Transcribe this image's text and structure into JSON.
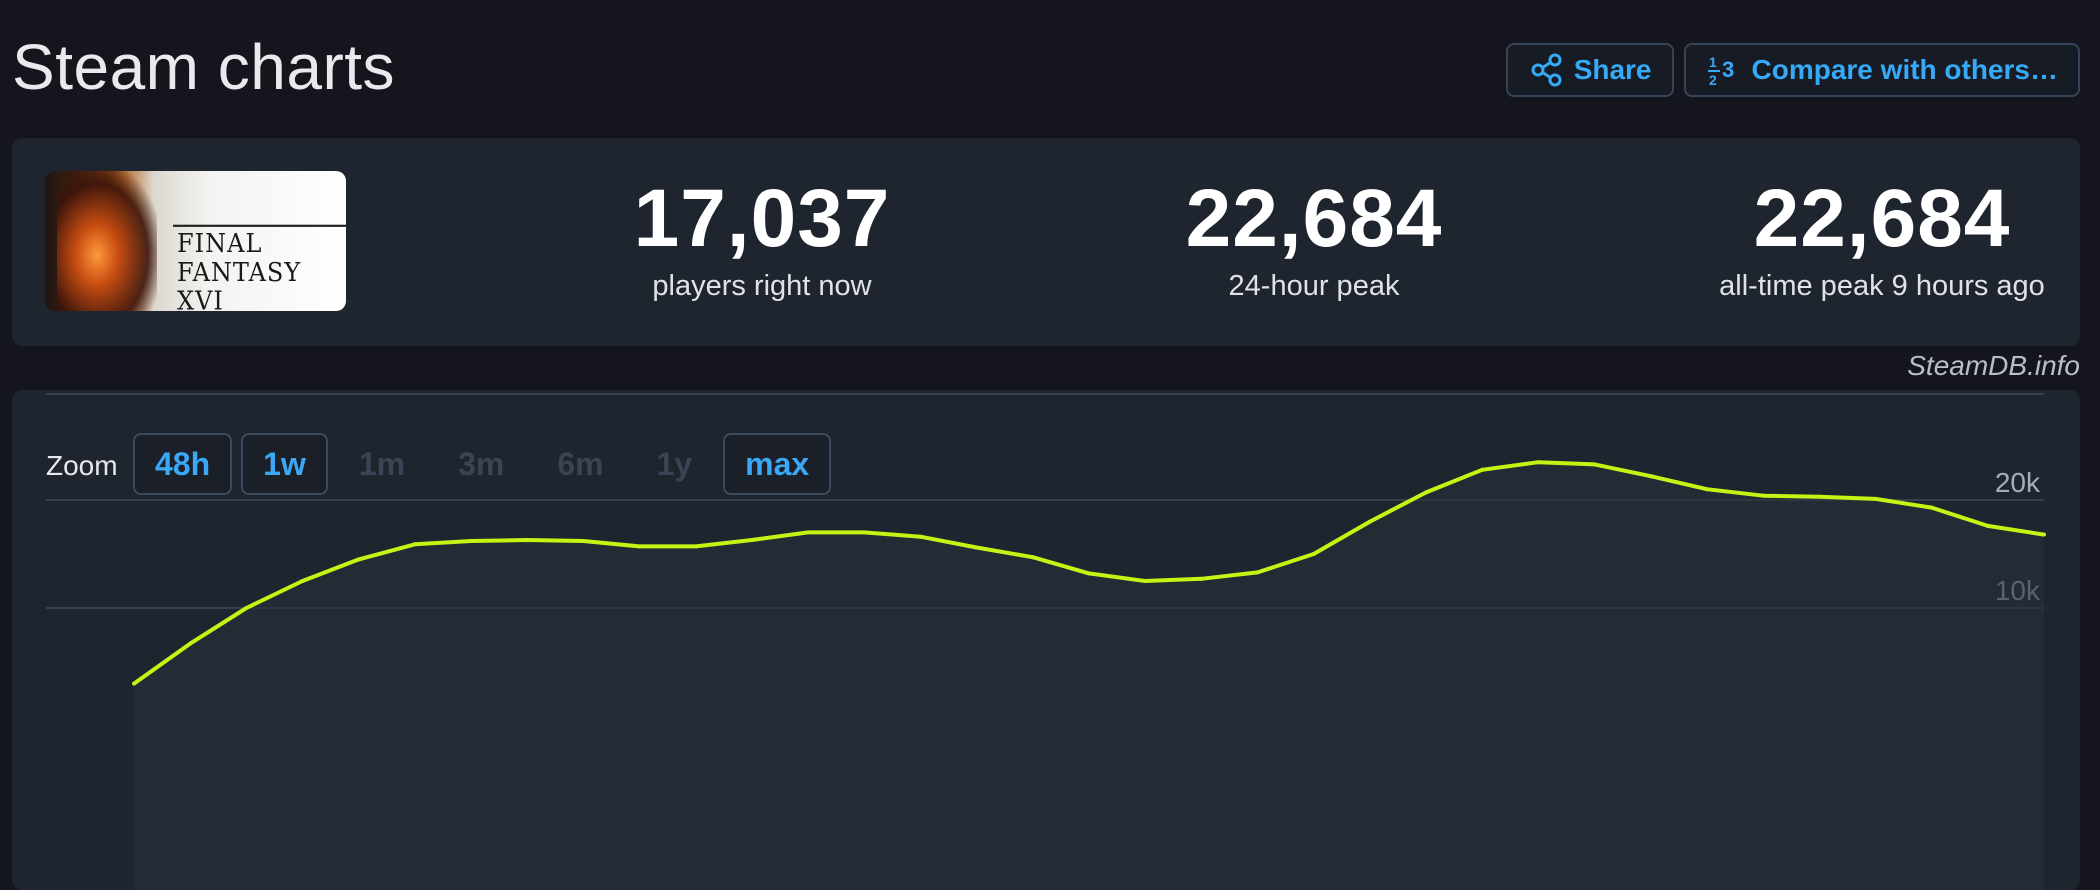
{
  "page": {
    "title": "Steam charts"
  },
  "header": {
    "share_label": "Share",
    "compare_label": "Compare with others…"
  },
  "game": {
    "logo_text": "FINAL FANTASY XVI"
  },
  "stats": [
    {
      "value": "17,037",
      "label": "players right now"
    },
    {
      "value": "22,684",
      "label": "24-hour peak"
    },
    {
      "value": "22,684",
      "label": "all-time peak 9 hours ago"
    }
  ],
  "attribution": "SteamDB.info",
  "zoom": {
    "label": "Zoom",
    "options": [
      {
        "label": "48h",
        "active": true
      },
      {
        "label": "1w",
        "active": true
      },
      {
        "label": "1m",
        "active": false
      },
      {
        "label": "3m",
        "active": false
      },
      {
        "label": "6m",
        "active": false
      },
      {
        "label": "1y",
        "active": false
      },
      {
        "label": "max",
        "active": true
      }
    ]
  },
  "colors": {
    "accent": "#36a9f7",
    "line": "#c6f314",
    "panel": "#1f252f",
    "background": "#14151d"
  },
  "chart_data": {
    "type": "line",
    "title": "",
    "xlabel": "",
    "ylabel": "",
    "y_tick_labels": [
      "20k",
      "10k"
    ],
    "y_ticks": [
      20000,
      10000
    ],
    "ylim": [
      0,
      30000
    ],
    "grid": true,
    "series": [
      {
        "values": [
          3000,
          6700,
          10000,
          12500,
          14500,
          15900,
          16200,
          16300,
          16200,
          15700,
          15700,
          16300,
          17000,
          17000,
          16600,
          15600,
          14700,
          13200,
          12500,
          12700,
          13300,
          15000,
          18000,
          20700,
          22800,
          23500,
          23300,
          22200,
          21000,
          20400,
          20300,
          20100,
          19300,
          17600,
          16800
        ]
      }
    ]
  }
}
